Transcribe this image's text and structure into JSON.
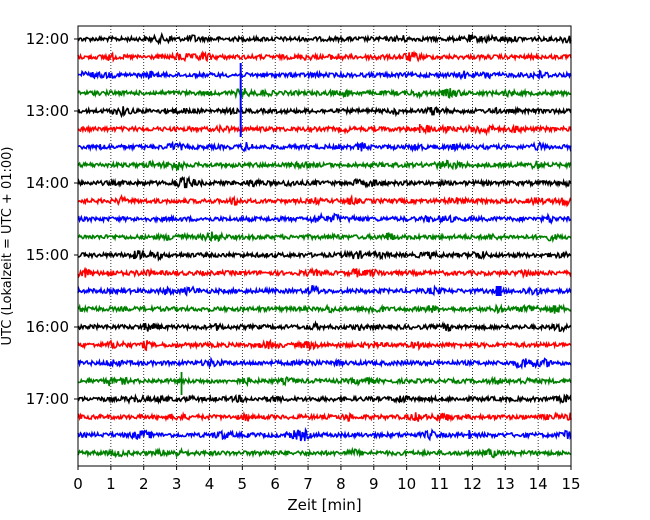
{
  "chart_data": {
    "type": "line",
    "title": "",
    "xlabel": "Zeit  [min]",
    "ylabel": "UTC (Lokalzeit = UTC + 01:00)",
    "xlim": [
      0,
      15
    ],
    "x_ticks": [
      0,
      1,
      2,
      3,
      4,
      5,
      6,
      7,
      8,
      9,
      10,
      11,
      12,
      13,
      14,
      15
    ],
    "x_tick_labels": [
      "0",
      "1",
      "2",
      "3",
      "4",
      "5",
      "6",
      "7",
      "8",
      "9",
      "10",
      "11",
      "12",
      "13",
      "14",
      "15"
    ],
    "y_tick_labels": [
      "12:00",
      "13:00",
      "14:00",
      "15:00",
      "16:00",
      "17:00"
    ],
    "grid": "vertical dotted at each minute",
    "trace_start_times": [
      "12:00",
      "12:15",
      "12:30",
      "12:45",
      "13:00",
      "13:15",
      "13:30",
      "13:45",
      "14:00",
      "14:15",
      "14:30",
      "14:45",
      "15:00",
      "15:15",
      "15:30",
      "15:45",
      "16:00",
      "16:15",
      "16:30",
      "16:45",
      "17:00",
      "17:15",
      "17:30",
      "17:45"
    ],
    "trace_colors": [
      "#000000",
      "#ff0000",
      "#0000ff",
      "#008000"
    ],
    "events": [
      {
        "trace_start": "12:30",
        "minute": 4.95,
        "amplitude": "large spike"
      },
      {
        "trace_start": "13:15",
        "minute": 10.4,
        "amplitude": "small spike"
      },
      {
        "trace_start": "15:30",
        "minute": 12.8,
        "amplitude": "burst"
      },
      {
        "trace_start": "16:45",
        "minute": 3.15,
        "amplitude": "spike"
      },
      {
        "trace_start": "17:30",
        "minute": 11.9,
        "amplitude": "small spike"
      }
    ]
  }
}
